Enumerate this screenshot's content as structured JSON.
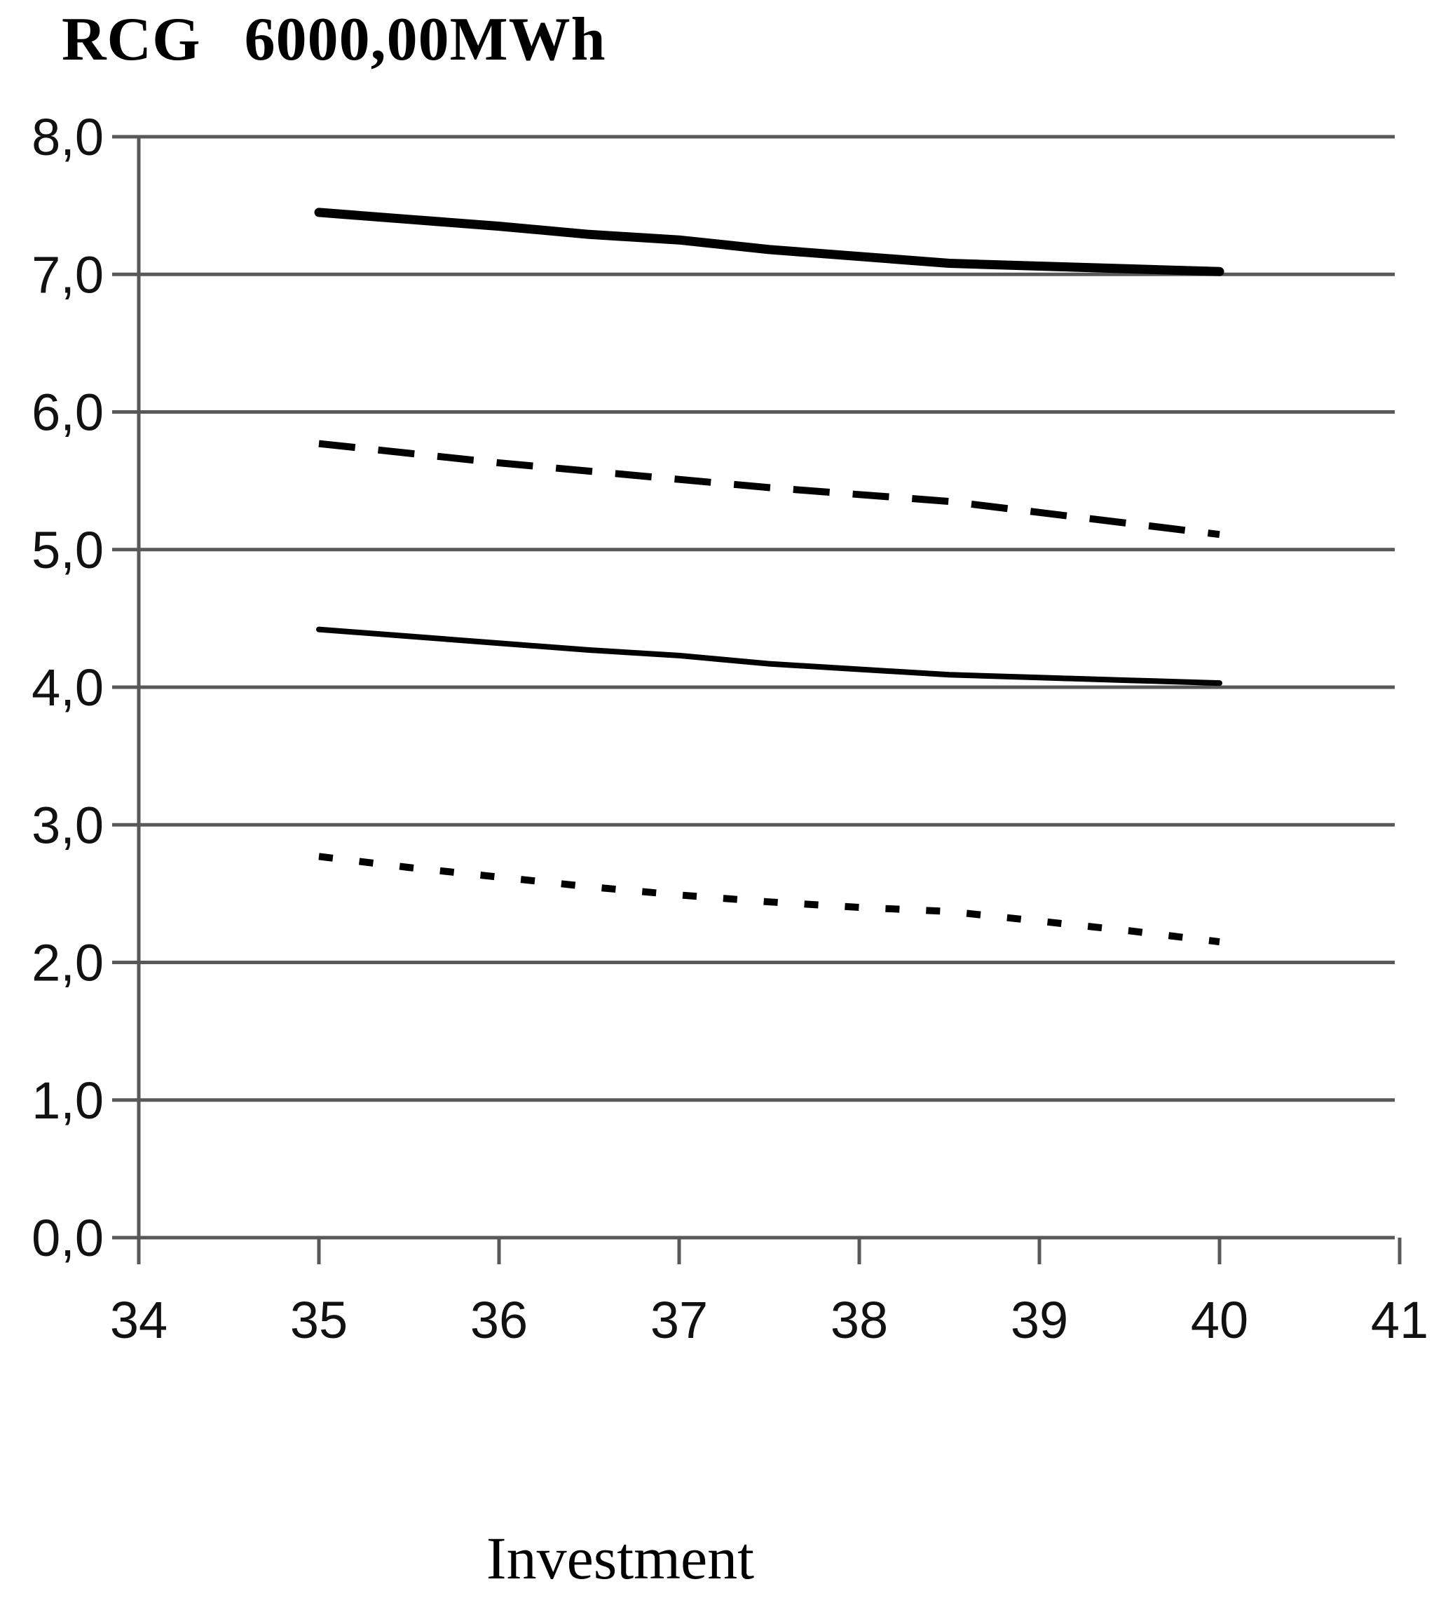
{
  "header": {
    "title_label": "RCG",
    "title_value": "6000,00MWh"
  },
  "chart_data": {
    "type": "line",
    "title": "RCG 6000,00MWh",
    "xlabel": "Investment",
    "ylabel": "",
    "xlim": [
      34,
      41
    ],
    "ylim": [
      0.0,
      8.0
    ],
    "grid": "horizontal",
    "legend": "none",
    "decimal_separator": ",",
    "x_tick_values": [
      34,
      35,
      36,
      37,
      38,
      39,
      40,
      41
    ],
    "x_tick_labels": [
      "34",
      "35",
      "36",
      "37",
      "38",
      "39",
      "40",
      "41"
    ],
    "y_tick_values": [
      0,
      1,
      2,
      3,
      4,
      5,
      6,
      7,
      8
    ],
    "y_tick_labels": [
      "0,0",
      "1,0",
      "2,0",
      "3,0",
      "4,0",
      "5,0",
      "6,0",
      "7,0",
      "8,0"
    ],
    "x": [
      35,
      35.5,
      36,
      36.5,
      37,
      37.5,
      38,
      38.5,
      39,
      39.5,
      40
    ],
    "series": [
      {
        "name": "upper-thick-solid-line",
        "line_style": "solid",
        "weight": "thick",
        "color": "#000000",
        "values": [
          7.45,
          7.4,
          7.35,
          7.29,
          7.25,
          7.18,
          7.13,
          7.08,
          7.06,
          7.04,
          7.02
        ]
      },
      {
        "name": "dashed-line",
        "line_style": "dashed",
        "weight": "medium",
        "color": "#000000",
        "values": [
          5.77,
          5.7,
          5.63,
          5.57,
          5.51,
          5.45,
          5.4,
          5.35,
          5.27,
          5.19,
          5.11
        ]
      },
      {
        "name": "lower-thin-solid-line",
        "line_style": "solid",
        "weight": "thin",
        "color": "#000000",
        "values": [
          4.42,
          4.37,
          4.32,
          4.27,
          4.23,
          4.17,
          4.13,
          4.09,
          4.07,
          4.05,
          4.03
        ]
      },
      {
        "name": "dotted-line",
        "line_style": "dotted",
        "weight": "medium",
        "color": "#000000",
        "values": [
          2.77,
          2.69,
          2.62,
          2.55,
          2.49,
          2.44,
          2.4,
          2.37,
          2.3,
          2.23,
          2.15
        ]
      }
    ],
    "colors": {
      "line": "#000000",
      "grid": "#58585a",
      "background": "#ffffff",
      "text": "#111111"
    }
  }
}
